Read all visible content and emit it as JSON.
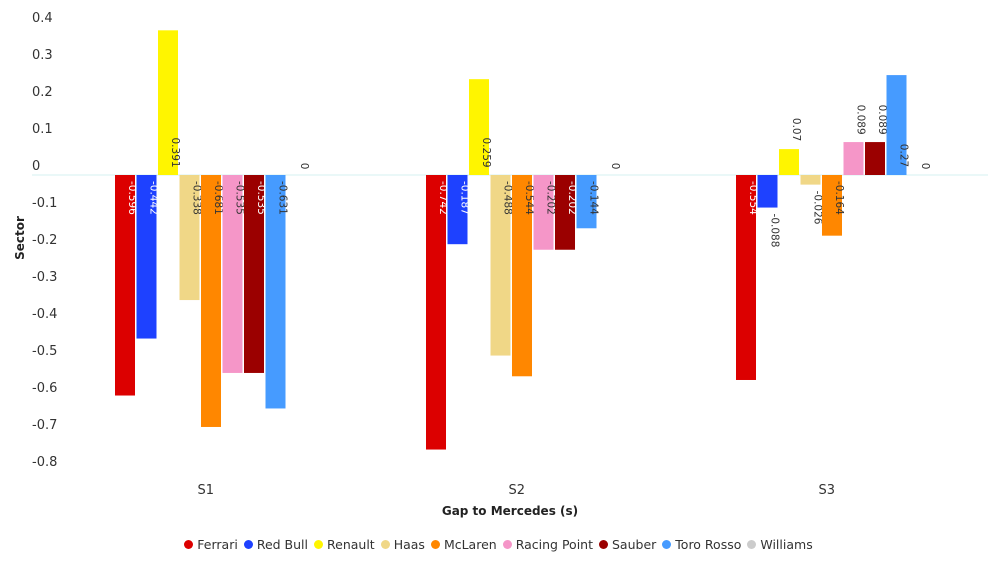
{
  "chart_data": {
    "type": "bar",
    "title": "",
    "xlabel": "Gap to Mercedes (s)",
    "ylabel": "Sector",
    "ylim": [
      -0.8,
      0.4
    ],
    "yticks": [
      0.4,
      0.3,
      0.2,
      0.1,
      0,
      -0.1,
      -0.2,
      -0.3,
      -0.4,
      -0.5,
      -0.6,
      -0.7,
      -0.8
    ],
    "categories": [
      "S1",
      "S2",
      "S3"
    ],
    "grid": false,
    "legend_position": "bottom",
    "series": [
      {
        "name": "Ferrari",
        "color": "#dc0000",
        "values": [
          -0.596,
          -0.742,
          -0.554
        ],
        "label_color": "#ffffff"
      },
      {
        "name": "Red Bull",
        "color": "#1e41ff",
        "values": [
          -0.442,
          -0.187,
          -0.088
        ],
        "label_color": "#ffffff"
      },
      {
        "name": "Renault",
        "color": "#fff500",
        "values": [
          0.391,
          0.259,
          0.07
        ],
        "label_color": "#333333"
      },
      {
        "name": "Haas",
        "color": "#f0d787",
        "values": [
          -0.338,
          -0.488,
          -0.026
        ],
        "label_color": "#333333"
      },
      {
        "name": "McLaren",
        "color": "#ff8700",
        "values": [
          -0.681,
          -0.544,
          -0.164
        ],
        "label_color": "#333333"
      },
      {
        "name": "Racing Point",
        "color": "#f596c8",
        "values": [
          -0.535,
          -0.202,
          0.089
        ],
        "label_color": "#333333"
      },
      {
        "name": "Sauber",
        "color": "#9b0000",
        "values": [
          -0.535,
          -0.202,
          0.089
        ],
        "label_color": "#ffffff"
      },
      {
        "name": "Toro Rosso",
        "color": "#469bff",
        "values": [
          -0.631,
          -0.144,
          0.27
        ],
        "label_color": "#333333"
      },
      {
        "name": "Williams",
        "color": "#cccccc",
        "values": [
          0,
          0,
          0
        ],
        "label_color": "#333333"
      }
    ]
  }
}
